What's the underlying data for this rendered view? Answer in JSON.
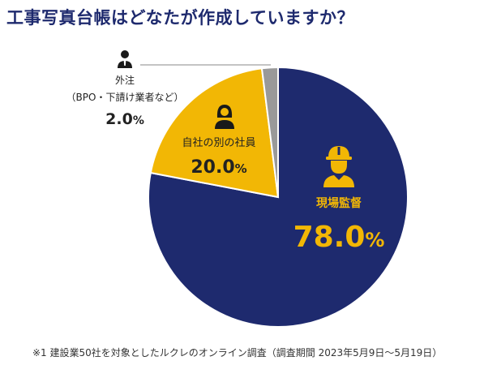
{
  "title": "工事写真台帳はどなたが作成していますか？",
  "footnote": "※1 建設業50社を対象としたルクレのオンライン調査（調査期間 2023年5月9日～5月19日）",
  "chart_data": {
    "type": "pie",
    "slices": [
      {
        "label": "現場監督",
        "value": 78.0,
        "value_label": "78.0",
        "unit": "%",
        "color": "#1e2a6e",
        "icon": "hardhat-worker-icon"
      },
      {
        "label": "自社の別の社員",
        "value": 20.0,
        "value_label": "20.0",
        "unit": "%",
        "color": "#f2b705",
        "icon": "female-employee-icon"
      },
      {
        "label_line1": "外注",
        "label_line2": "（BPO・下請け業者など）",
        "value": 2.0,
        "value_label": "2.0",
        "unit": "%",
        "color": "#999999",
        "icon": "male-person-icon"
      }
    ]
  }
}
